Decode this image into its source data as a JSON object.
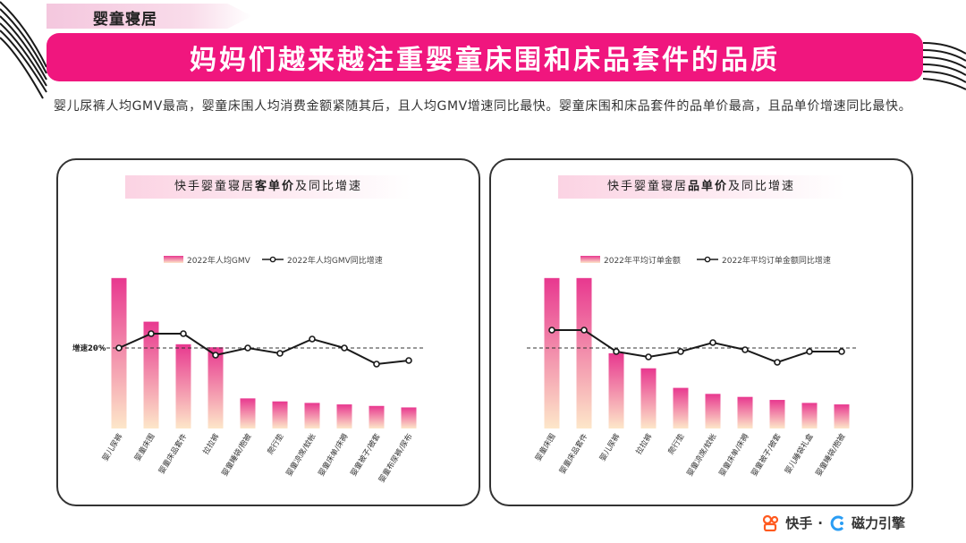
{
  "section_tag": "婴童寝居",
  "title": "妈妈们越来越注重婴童床围和床品套件的品质",
  "summary": "婴儿尿裤人均GMV最高，婴童床围人均消费金额紧随其后，且人均GMV增速同比最快。婴童床围和床品套件的品单价最高，且品单价增速同比最快。",
  "left_panel": {
    "title_pre": "快手婴童寝居",
    "title_bold": "客单价",
    "title_post": "及同比增速"
  },
  "right_panel": {
    "title_pre": "快手婴童寝居",
    "title_bold": "品单价",
    "title_post": "及同比增速"
  },
  "footer": {
    "brand1": "快手",
    "separator": "·",
    "brand2": "磁力引擎"
  },
  "colors": {
    "accent": "#f0167e",
    "bar_top": "#e8388f",
    "bar_bottom": "#fde7c9",
    "line": "#1a1a1a"
  },
  "chart_data": [
    {
      "type": "bar",
      "categories": [
        "婴儿尿裤",
        "婴童床围",
        "婴童床品套件",
        "拉拉裤",
        "婴童睡袋/抱被",
        "爬行垫",
        "婴童凉席/蚊帐",
        "婴童床单/床褥",
        "婴童被子/被套",
        "婴童布尿裤/尿布"
      ],
      "series": [
        {
          "name": "2022年人均GMV",
          "kind": "bar",
          "values": [
            100,
            71,
            56,
            54,
            20,
            18,
            17,
            16,
            15,
            14
          ]
        },
        {
          "name": "2022年人均GMV同比增速",
          "kind": "line",
          "values": [
            20,
            28,
            28,
            16,
            20,
            17,
            25,
            20,
            11,
            13
          ]
        }
      ],
      "reference_line": {
        "label": "增速20%",
        "value": 20
      },
      "legend": "top-center",
      "bar_ylim": [
        0,
        110
      ],
      "line_ylim": [
        -40,
        50
      ]
    },
    {
      "type": "bar",
      "categories": [
        "婴童床围",
        "婴童床品套件",
        "婴儿尿裤",
        "拉拉裤",
        "爬行垫",
        "婴童凉席/蚊帐",
        "婴童床单/床褥",
        "婴童被子/被套",
        "婴儿睡袋礼盒",
        "婴童睡袋/抱被"
      ],
      "series": [
        {
          "name": "2022年平均订单金额",
          "kind": "bar",
          "values": [
            100,
            100,
            50,
            40,
            27,
            23,
            21,
            19,
            17,
            16
          ]
        },
        {
          "name": "2022年平均订单金额同比增速",
          "kind": "line",
          "values": [
            30,
            30,
            18,
            15,
            18,
            23,
            19,
            12,
            18,
            18
          ]
        }
      ],
      "reference_line": {
        "label": "",
        "value": 20
      },
      "legend": "top-center",
      "bar_ylim": [
        0,
        110
      ],
      "line_ylim": [
        -40,
        50
      ]
    }
  ]
}
